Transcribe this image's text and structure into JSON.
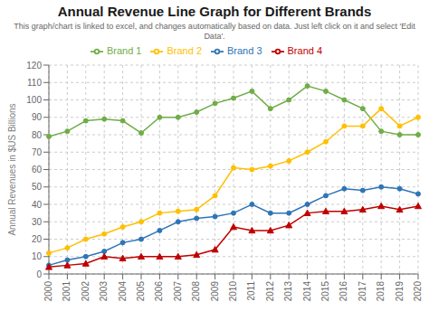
{
  "chart_data": {
    "type": "line",
    "title": "Annual Revenue Line Graph for Different Brands",
    "subtitle": "This graph/chart is linked to excel, and changes automatically based on data. Just left click on it and select 'Edit Data'.",
    "y_label": "Annual Revenues in $US Billions",
    "categories": [
      "2000",
      "2001",
      "2002",
      "2003",
      "2004",
      "2005",
      "2006",
      "2007",
      "2008",
      "2009",
      "2010",
      "2011",
      "2012",
      "2013",
      "2014",
      "2015",
      "2016",
      "2017",
      "2018",
      "2019",
      "2020"
    ],
    "series": [
      {
        "name": "Brand 1",
        "color": "#70ad47",
        "marker": "circle",
        "values": [
          79,
          82,
          88,
          89,
          88,
          81,
          90,
          90,
          93,
          98,
          101,
          105,
          95,
          100,
          108,
          105,
          100,
          95,
          82,
          80,
          80
        ]
      },
      {
        "name": "Brand 2",
        "color": "#ffc000",
        "marker": "circle",
        "values": [
          12,
          15,
          20,
          23,
          27,
          30,
          35,
          36,
          37,
          45,
          61,
          60,
          62,
          65,
          70,
          76,
          85,
          85,
          95,
          85,
          90
        ]
      },
      {
        "name": "Brand 3",
        "color": "#2e75b6",
        "marker": "circle",
        "values": [
          5,
          8,
          10,
          13,
          18,
          20,
          25,
          30,
          32,
          33,
          35,
          40,
          35,
          35,
          40,
          45,
          49,
          48,
          50,
          49,
          46
        ]
      },
      {
        "name": "Brand 4",
        "color": "#c00000",
        "marker": "triangle",
        "values": [
          4,
          5,
          6,
          10,
          9,
          10,
          10,
          10,
          11,
          14,
          27,
          25,
          25,
          28,
          35,
          36,
          36,
          37,
          39,
          37,
          39
        ]
      }
    ],
    "ylim": [
      0,
      120
    ],
    "yticks": [
      0,
      10,
      20,
      30,
      40,
      50,
      60,
      70,
      80,
      90,
      100,
      110,
      120
    ],
    "grid": true,
    "legend": "top"
  }
}
